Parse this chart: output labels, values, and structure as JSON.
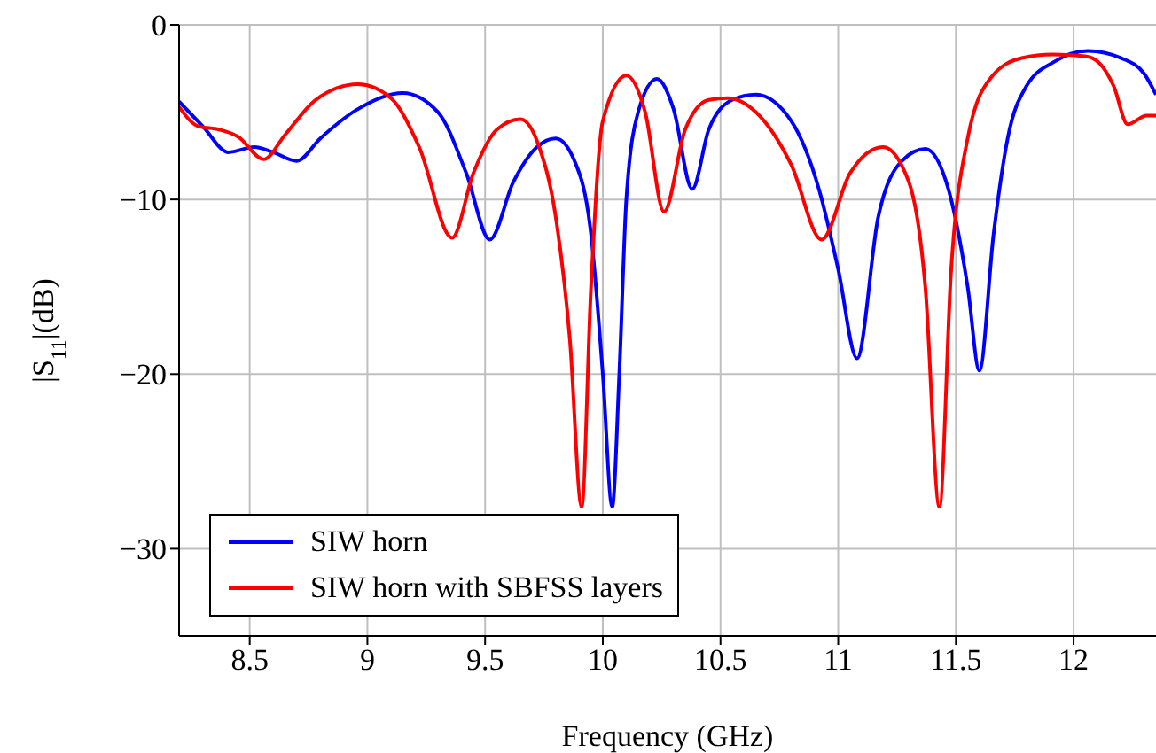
{
  "chart_data": {
    "type": "line",
    "xlabel": "Frequency (GHz)",
    "ylabel": "|S$_{11}$|(dB)",
    "xlim": [
      8.2,
      12.35
    ],
    "xticks": [
      8.5,
      9,
      9.5,
      10,
      10.5,
      11,
      11.5,
      12
    ],
    "ylim": [
      -35,
      0
    ],
    "yticks": [
      {
        "value": -30,
        "label": "−30"
      },
      {
        "value": -20,
        "label": "−20"
      },
      {
        "value": -10,
        "label": "−10"
      },
      0
    ],
    "grid": true,
    "legend": "bottom left",
    "marker": "none",
    "line_style": "solid",
    "series": [
      {
        "name": "SIW horn",
        "color": "#0000ff",
        "x": [
          8.2,
          8.3,
          8.41,
          8.52,
          8.6,
          8.7,
          8.8,
          8.95,
          9.15,
          9.3,
          9.42,
          9.52,
          9.62,
          9.72,
          9.8,
          9.88,
          9.95,
          10.0,
          10.04,
          10.07,
          10.1,
          10.15,
          10.23,
          10.3,
          10.38,
          10.45,
          10.55,
          10.65,
          10.8,
          10.92,
          11.0,
          11.08,
          11.17,
          11.27,
          11.37,
          11.47,
          11.55,
          11.6,
          11.66,
          11.72,
          11.8,
          11.92,
          12.06,
          12.2,
          12.3,
          12.35
        ],
        "values": [
          -4.4,
          -5.8,
          -7.3,
          -7.0,
          -7.3,
          -7.8,
          -6.5,
          -4.9,
          -3.9,
          -5.0,
          -8.5,
          -12.3,
          -9.0,
          -7.0,
          -6.5,
          -7.8,
          -12,
          -20,
          -27.6,
          -20,
          -10,
          -5,
          -3.1,
          -4.8,
          -9.4,
          -6.0,
          -4.3,
          -4.0,
          -5.5,
          -9.5,
          -14,
          -19.1,
          -11,
          -7.8,
          -7.1,
          -9.5,
          -15,
          -19.8,
          -12,
          -6.5,
          -3.5,
          -2.1,
          -1.5,
          -1.9,
          -2.8,
          -4.0
        ]
      },
      {
        "name": "SIW horn with SBFSS layers",
        "color": "#ff0000",
        "x": [
          8.2,
          8.28,
          8.37,
          8.45,
          8.56,
          8.65,
          8.78,
          8.96,
          9.1,
          9.22,
          9.36,
          9.45,
          9.55,
          9.65,
          9.73,
          9.8,
          9.86,
          9.91,
          9.95,
          10.0,
          10.1,
          10.18,
          10.26,
          10.35,
          10.45,
          10.53,
          10.65,
          10.8,
          10.93,
          11.05,
          11.19,
          11.3,
          11.37,
          11.43,
          11.48,
          11.55,
          11.65,
          11.78,
          11.91,
          12.05,
          12.11,
          12.17,
          12.23,
          12.31,
          12.35
        ],
        "values": [
          -4.7,
          -5.8,
          -6.0,
          -6.4,
          -7.7,
          -6.3,
          -4.3,
          -3.4,
          -4.2,
          -7.0,
          -12.2,
          -8.5,
          -6.0,
          -5.4,
          -7.0,
          -11,
          -18,
          -27.6,
          -15,
          -5.5,
          -2.9,
          -5,
          -10.7,
          -6,
          -4.3,
          -4.2,
          -5.0,
          -8,
          -12.3,
          -8.5,
          -7.0,
          -9,
          -15,
          -27.6,
          -14,
          -6.5,
          -3.0,
          -1.9,
          -1.7,
          -1.8,
          -2.2,
          -3.5,
          -5.7,
          -5.2,
          -5.2
        ]
      }
    ]
  }
}
